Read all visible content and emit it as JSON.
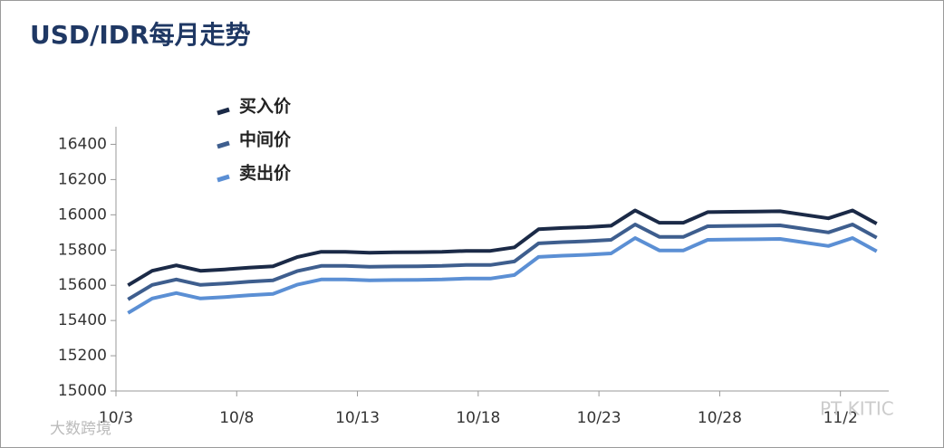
{
  "chart_data": {
    "type": "line",
    "title": "USD/IDR每月走势",
    "categories": [
      "10/3",
      null,
      null,
      null,
      null,
      "10/8",
      null,
      null,
      null,
      null,
      "10/13",
      null,
      null,
      null,
      null,
      "10/18",
      null,
      null,
      null,
      null,
      "10/23",
      null,
      null,
      null,
      null,
      "10/28",
      null,
      null,
      null,
      null,
      "11/2",
      null
    ],
    "series": [
      {
        "name": "买入价",
        "color": "#1b2a47",
        "values": [
          15600,
          15682,
          15713,
          15682,
          15690,
          15700,
          15708,
          15760,
          15790,
          15790,
          15785,
          15787,
          15788,
          15790,
          15795,
          15795,
          15815,
          15918,
          15925,
          15930,
          15938,
          16025,
          15955,
          15955,
          16015,
          16017,
          16018,
          16020,
          16000,
          15980,
          16025,
          15950
        ]
      },
      {
        "name": "中间价",
        "color": "#3e5e8e",
        "values": [
          15520,
          15602,
          15633,
          15602,
          15610,
          15620,
          15628,
          15680,
          15710,
          15710,
          15705,
          15707,
          15708,
          15710,
          15715,
          15715,
          15735,
          15838,
          15845,
          15850,
          15858,
          15945,
          15875,
          15875,
          15935,
          15937,
          15938,
          15940,
          15920,
          15900,
          15945,
          15870
        ]
      },
      {
        "name": "卖出价",
        "color": "#5b8fd4",
        "values": [
          15443,
          15525,
          15556,
          15525,
          15533,
          15543,
          15551,
          15603,
          15633,
          15633,
          15628,
          15630,
          15631,
          15633,
          15638,
          15638,
          15658,
          15761,
          15768,
          15773,
          15781,
          15868,
          15798,
          15798,
          15858,
          15860,
          15861,
          15863,
          15843,
          15823,
          15868,
          15793
        ]
      }
    ],
    "ylim": [
      15000,
      16500
    ],
    "yticks": [
      15000,
      15200,
      15400,
      15600,
      15800,
      16000,
      16200,
      16400
    ],
    "grid": false,
    "legend": "top-left",
    "watermarks": [
      "大数跨境",
      "PT KITIC"
    ]
  }
}
